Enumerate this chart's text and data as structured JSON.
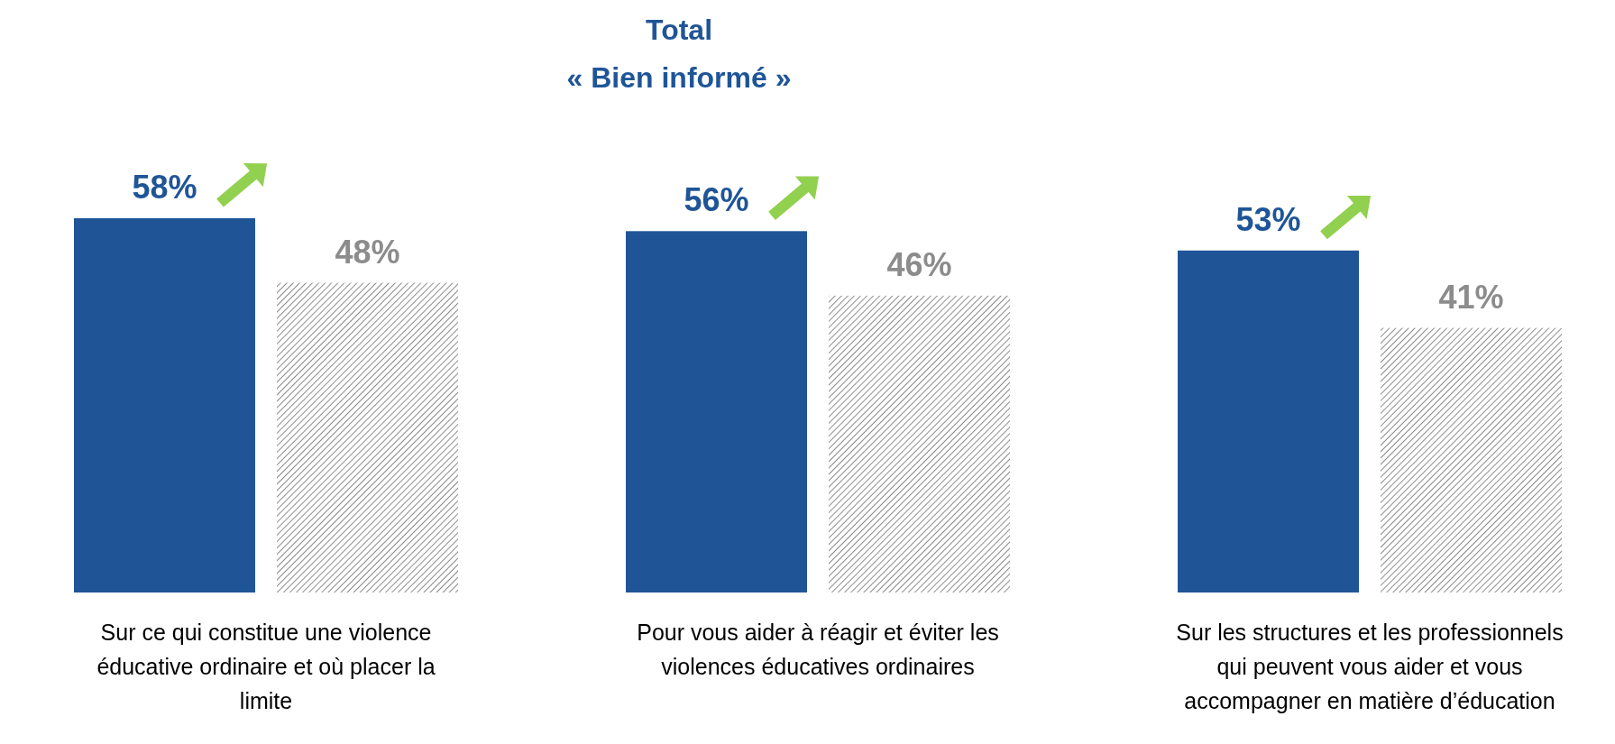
{
  "chart_data": {
    "type": "bar",
    "title": "Total",
    "subtitle": "« Bien informé »",
    "categories": [
      "Sur ce qui constitue une violence éducative ordinaire et où placer la limite",
      "Pour vous aider à réagir et éviter les violences éducatives ordinaires",
      "Sur les structures et les professionnels qui peuvent vous aider et vous accompagner en matière d’éducation"
    ],
    "series": [
      {
        "color": "#1f5597",
        "values": [
          58,
          56,
          53
        ],
        "value_labels": [
          "58%",
          "56%",
          "53%"
        ]
      },
      {
        "color": "#8c8c8c",
        "values": [
          48,
          46,
          41
        ],
        "value_labels": [
          "48%",
          "46%",
          "41%"
        ]
      }
    ],
    "tick_labels": "x"
  }
}
